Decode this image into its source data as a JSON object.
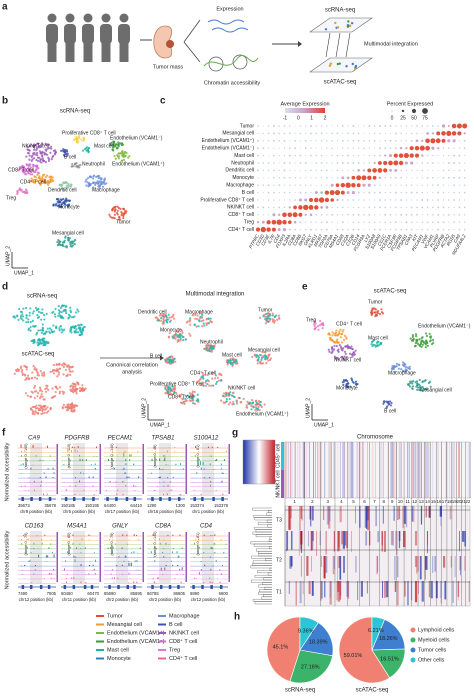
{
  "panel_a": {
    "letter": "a",
    "expression": "Expression",
    "tumor_mass": "Tumor mass",
    "chromatin": "Chromatin accessibility",
    "scrna": "scRNA-seq",
    "integration": "Multimodal integration",
    "scatac": "scATAC-seq"
  },
  "panel_b": {
    "letter": "b",
    "title": "scRNA-seq",
    "umap_x": "UMAP_1",
    "umap_y": "UMAP_2",
    "labels": [
      {
        "name": "Proliferative CD8⁺ T cell",
        "color": "#f5d040"
      },
      {
        "name": "Mast cell",
        "color": "#1bb3a0"
      },
      {
        "name": "NK/NKT cell",
        "color": "#9b59b6"
      },
      {
        "name": "Endothelium (VCAM1⁻)",
        "color": "#3a9a3a"
      },
      {
        "name": "B cell",
        "color": "#3f51b5"
      },
      {
        "name": "Neutrophil",
        "color": "#8c8c8c"
      },
      {
        "name": "Endothelium (VCAM1⁺)",
        "color": "#7fb93a"
      },
      {
        "name": "CD8⁺ T cell",
        "color": "#d36bd1"
      },
      {
        "name": "CD4⁺ T cell",
        "color": "#f39b2f"
      },
      {
        "name": "Dendritic cell",
        "color": "#8bc5a0"
      },
      {
        "name": "Macrophage",
        "color": "#6a8fd8"
      },
      {
        "name": "Treg",
        "color": "#e377c2"
      },
      {
        "name": "Monocyte",
        "color": "#2c4fa8"
      },
      {
        "name": "Tumor",
        "color": "#e64b35"
      },
      {
        "name": "Mesangial cell",
        "color": "#2e9a8a"
      }
    ]
  },
  "panel_c": {
    "letter": "c",
    "avg_title": "Average Expression",
    "avg_ticks": [
      -1,
      0,
      1,
      2
    ],
    "pct_title": "Percent Expressed",
    "pct_ticks": [
      0,
      25,
      50,
      75
    ],
    "rows": [
      "Tumor",
      "Mesangial cell",
      "Endothelium (VCAM1⁺)",
      "Endothelium (VCAM1⁻)",
      "Mast cell",
      "Neutrophil",
      "Dendritic cell",
      "Monocyte",
      "Macrophage",
      "B cell",
      "Proliferative CD8⁺ T cell",
      "NK/NKT cell",
      "CD8⁺ T cell",
      "Treg",
      "CD4⁺ T cell"
    ],
    "genes": [
      "PTPRC",
      "CD3D",
      "CD3E",
      "IL7R",
      "CD4",
      "FOXP3",
      "IL2RA",
      "CD8A",
      "CD8B",
      "NKG7",
      "GNLY",
      "KLRD1",
      "MKI67",
      "TOP2A",
      "CD79A",
      "MS4A1",
      "CD68",
      "C1QA",
      "C1QB",
      "CD14",
      "FCGR3A",
      "LYZ",
      "S100A8",
      "S100A9",
      "CD1C",
      "FCER1A",
      "CSF3R",
      "FCGR3B",
      "TPSAB1",
      "CPA3",
      "KIT",
      "PECAM1",
      "VWF",
      "VCAM1",
      "PLVAP",
      "PDGFRB",
      "ACTA2",
      "RGS5",
      "CA9",
      "NDUFA4L2"
    ]
  },
  "panel_d": {
    "letter": "d",
    "scrna": "scRNA-seq",
    "scatac": "scATAC-seq",
    "cca_1": "Canonical correlation",
    "cca_2": "analysis",
    "title": "Multimodal integration",
    "umap_x": "UMAP_1",
    "umap_y": "UMAP_2",
    "modality_colors": [
      "#22b5b0",
      "#f07c72"
    ],
    "labels": [
      "Dendritic cell",
      "Macrophage",
      "Tumor",
      "Monocyte",
      "Neutrophil",
      "B cell",
      "Mesangial cell",
      "Mast cell",
      "CD4⁺ T cell",
      "Proliferative CD8⁺ T cell",
      "CD8⁺ T cell",
      "NK/NKT cell",
      "Endothelium (VCAM1⁺)"
    ]
  },
  "panel_e": {
    "letter": "e",
    "title": "scATAC-seq",
    "umap_x": "UMAP_1",
    "umap_y": "UMAP_2",
    "labels": [
      {
        "name": "Tumor",
        "color": "#e64b35"
      },
      {
        "name": "Treg",
        "color": "#e377c2"
      },
      {
        "name": "CD4⁺ T cell",
        "color": "#f39b2f"
      },
      {
        "name": "Mast cell",
        "color": "#1bb3a0"
      },
      {
        "name": "Endothelium (VCAM1⁻)",
        "color": "#3a9a3a"
      },
      {
        "name": "NK/NKT cell",
        "color": "#9b59b6"
      },
      {
        "name": "Macrophage",
        "color": "#6a8fd8"
      },
      {
        "name": "Monocyte",
        "color": "#2c4fa8"
      },
      {
        "name": "Mesangial cell",
        "color": "#2e9a8a"
      },
      {
        "name": "B cell",
        "color": "#3f51b5"
      }
    ]
  },
  "panel_f": {
    "letter": "f",
    "y_label": "Normalized accessibility",
    "tracks": [
      {
        "gene": "CA9",
        "range": "(range 0 - 105)",
        "start": "35673",
        "end": "35678",
        "chr": "chr9 position (kb)"
      },
      {
        "gene": "PDGFRB",
        "range": "(range 0 - 110)",
        "start": "150185",
        "end": "150195",
        "chr": "chr5 position (kb)"
      },
      {
        "gene": "PECAM1",
        "range": "(range 0 - 140)",
        "start": "64400",
        "end": "64410",
        "chr": "chr17 position (kb)"
      },
      {
        "gene": "TPSAB1",
        "range": "(range 0 - 45)",
        "start": "1290",
        "end": "1300",
        "chr": "chr16 position (kb)"
      },
      {
        "gene": "S100A12",
        "range": "(range 0 - 61)",
        "start": "153374",
        "end": "153378",
        "chr": "chr1 position (kb)"
      },
      {
        "gene": "CD163",
        "range": "(range 0 - 74)",
        "start": "7490",
        "end": "7505",
        "chr": "chr12 position (kb)"
      },
      {
        "gene": "MS4A1",
        "range": "(range 0 - 80)",
        "start": "60460",
        "end": "60470",
        "chr": "chr11 position (kb)"
      },
      {
        "gene": "GNLY",
        "range": "(range 0 - 79)",
        "start": "85690",
        "end": "85695",
        "chr": "chr2 position (kb)"
      },
      {
        "gene": "CD8A",
        "range": "(range 0 - 140)",
        "start": "86785",
        "end": "86805",
        "chr": "chr2 position (kb)"
      },
      {
        "gene": "CD4",
        "range": "(range 0 - 81)",
        "start": "6890",
        "end": "6900",
        "chr": "chr12 position (kb)"
      }
    ],
    "legend": [
      {
        "name": "Tumor",
        "color": "#e64b35"
      },
      {
        "name": "Mesangial cell",
        "color": "#f39b2f"
      },
      {
        "name": "Endothelium (VCAM1⁺)",
        "color": "#7fb93a"
      },
      {
        "name": "Endothelium (VCAM1⁻)",
        "color": "#3a9a3a"
      },
      {
        "name": "Mast cell",
        "color": "#1bb3a0"
      },
      {
        "name": "Monocyte",
        "color": "#2c7fb8"
      },
      {
        "name": "Macrophage",
        "color": "#6a8fd8"
      },
      {
        "name": "B cell",
        "color": "#3f51b5"
      },
      {
        "name": "NK/NKT cell",
        "color": "#9b59b6"
      },
      {
        "name": "CD8⁺ T cell",
        "color": "#d36bd1"
      },
      {
        "name": "Treg",
        "color": "#e377c2"
      },
      {
        "name": "CD4⁺ T cell",
        "color": "#f06292"
      }
    ]
  },
  "panel_g": {
    "letter": "g",
    "title": "Chromosome",
    "row_1": "CD45⁺ cell",
    "row_2": "NK/NKT cell",
    "chromosomes": [
      1,
      2,
      3,
      4,
      5,
      6,
      7,
      8,
      9,
      10,
      11,
      12,
      13,
      14,
      15,
      16,
      17,
      18,
      19,
      20,
      21,
      22
    ],
    "tumors": [
      "T1",
      "T2",
      "T3"
    ]
  },
  "panel_h": {
    "letter": "h"
  },
  "chart_data": [
    {
      "type": "pie",
      "title": "scRNA-seq",
      "categories": [
        "Lymphoid cells",
        "Myeloid cells",
        "Tumor cells",
        "Other cells"
      ],
      "values": [
        45.1,
        27.16,
        18.39,
        9.36
      ],
      "value_labels": [
        "45.1%",
        "27.16%",
        "18.39%",
        "9.36%"
      ],
      "colors": [
        "#f08072",
        "#3cb36a",
        "#3f7fd0",
        "#2ec4d6"
      ]
    },
    {
      "type": "pie",
      "title": "scATAC-seq",
      "categories": [
        "Lymphoid cells",
        "Myeloid cells",
        "Tumor cells",
        "Other cells"
      ],
      "values": [
        59.01,
        16.51,
        18.26,
        6.21
      ],
      "value_labels": [
        "59.01%",
        "16.51%",
        "18.26%",
        "6.21%"
      ],
      "colors": [
        "#f08072",
        "#3cb36a",
        "#3f7fd0",
        "#2ec4d6"
      ]
    }
  ]
}
